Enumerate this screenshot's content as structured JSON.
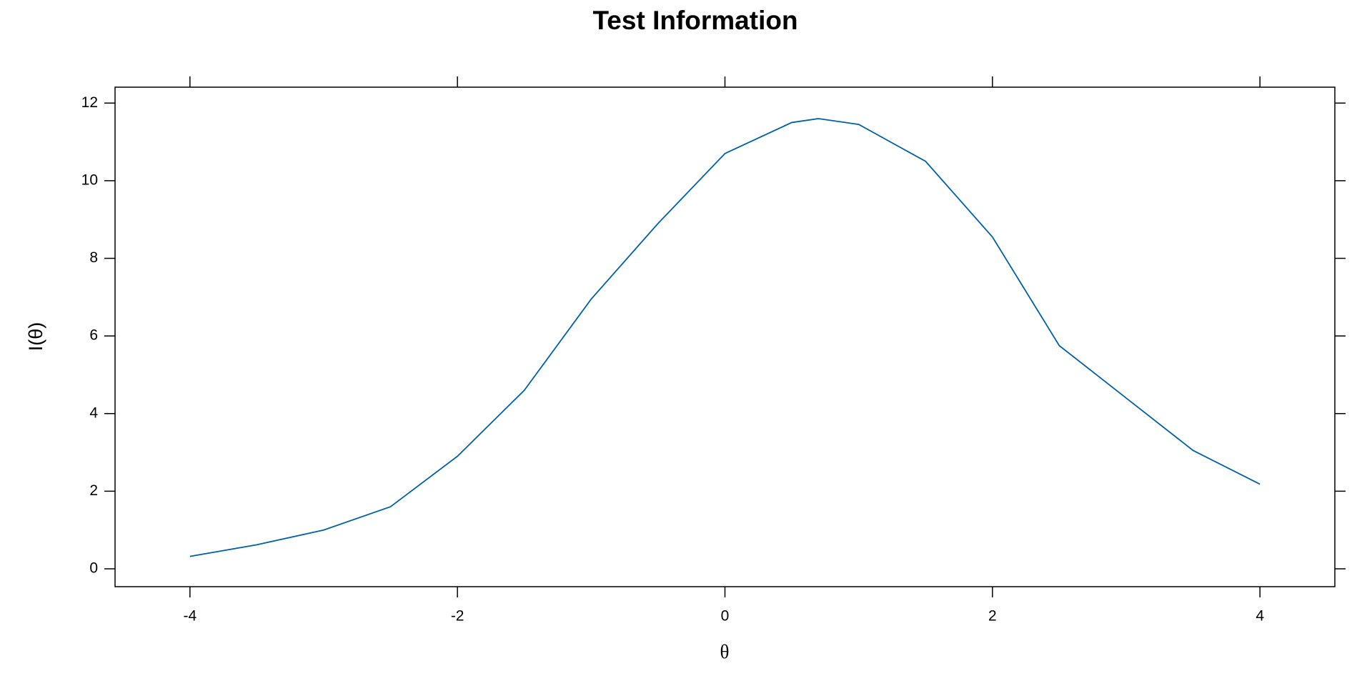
{
  "chart_data": {
    "type": "line",
    "title": "Test Information",
    "x_label": "θ",
    "y_label": "I(θ)",
    "x": [
      -4,
      -3.5,
      -3,
      -2.5,
      -2,
      -1.5,
      -1,
      -0.5,
      0,
      0.5,
      0.7,
      1,
      1.5,
      2,
      2.5,
      3,
      3.5,
      4
    ],
    "series": [
      {
        "color": "#0060aa",
        "values": [
          0.32,
          0.62,
          1.0,
          1.6,
          2.9,
          4.6,
          6.95,
          8.9,
          10.7,
          11.5,
          11.6,
          11.45,
          10.5,
          8.55,
          5.75,
          4.4,
          3.05,
          2.18
        ]
      }
    ],
    "xlim": [
      -4.56,
      4.56
    ],
    "xticks": [
      -4,
      -2,
      0,
      2,
      4
    ],
    "ylim": [
      -0.46,
      12.41
    ],
    "yticks": [
      0,
      2,
      4,
      6,
      8,
      10,
      12
    ]
  }
}
